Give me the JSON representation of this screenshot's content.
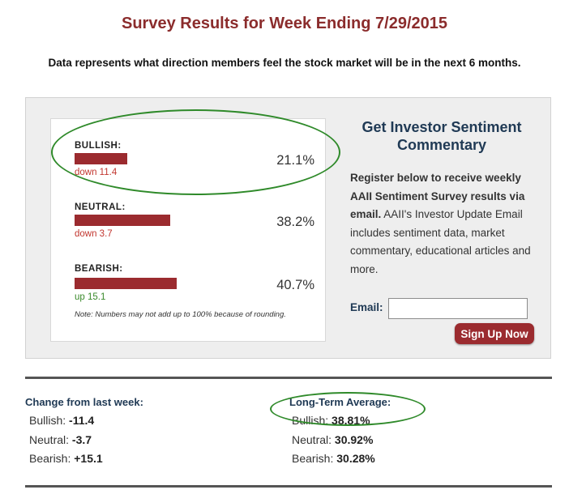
{
  "page": {
    "title": "Survey Results for Week Ending 7/29/2015",
    "subtitle": "Data represents what direction members feel the stock market will be in the next 6 months."
  },
  "survey": {
    "items": [
      {
        "label": "BULLISH:",
        "percent": "21.1%",
        "value": 21.1,
        "change": "down 11.4",
        "direction": "down"
      },
      {
        "label": "NEUTRAL:",
        "percent": "38.2%",
        "value": 38.2,
        "change": "down 3.7",
        "direction": "down"
      },
      {
        "label": "BEARISH:",
        "percent": "40.7%",
        "value": 40.7,
        "change": "up 15.1",
        "direction": "up"
      }
    ],
    "note": "Note: Numbers may not add up to 100% because of rounding.",
    "bar_color": "#9b2b2f"
  },
  "promo": {
    "title": "Get Investor Sentiment Commentary",
    "body_bold": "Register below to receive weekly AAII Sentiment Survey results via email.",
    "body_rest": " AAII's Investor Update Email includes sentiment data, market commentary, educational articles and more.",
    "email_label": "Email:",
    "email_value": "",
    "button_label": "Sign Up Now"
  },
  "change_from_last_week": {
    "heading": "Change from last week:",
    "rows": [
      {
        "label": "Bullish: ",
        "value": "-11.4"
      },
      {
        "label": "Neutral: ",
        "value": "-3.7"
      },
      {
        "label": "Bearish: ",
        "value": "+15.1"
      }
    ]
  },
  "long_term_average": {
    "heading": "Long-Term Average:",
    "rows": [
      {
        "label": "Bullish: ",
        "value": "38.81%"
      },
      {
        "label": "Neutral: ",
        "value": "30.92%"
      },
      {
        "label": "Bearish: ",
        "value": "30.28%"
      }
    ]
  },
  "colors": {
    "title": "#8b2c2c",
    "navy": "#203a55",
    "highlight_oval": "#2f8a2a"
  }
}
